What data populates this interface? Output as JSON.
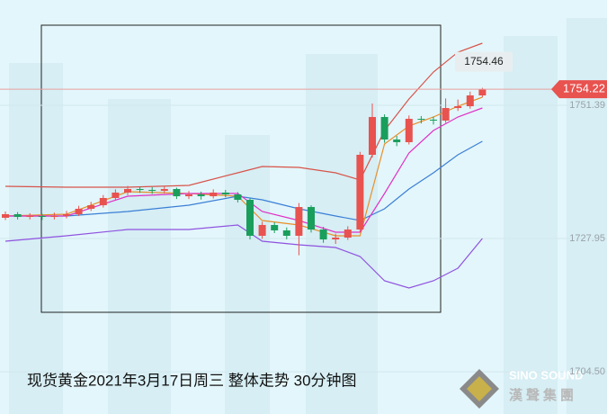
{
  "chart_data": {
    "type": "candlestick",
    "title": "现货黄金2021年3月17日周三 整体走势 30分钟图",
    "brand_en": "SINO SOUND",
    "brand_cn": "漢聲集團",
    "up_color": "#e8524f",
    "down_color": "#1a9e5c",
    "ylim": [
      1697.07,
      1769.92
    ],
    "yticks": [
      1751.39,
      1727.95,
      {
        "value": 1704.5,
        "label": "1704.50"
      }
    ],
    "open": [
      1731.6,
      1732.23,
      1731.75,
      1731.91,
      1731.75,
      1731.91,
      1732.23,
      1733.18,
      1733.81,
      1735.08,
      1736.03,
      1736.66,
      1736.5,
      1736.34,
      1736.66,
      1735.39,
      1735.71,
      1735.39,
      1736.03,
      1735.71,
      1734.76,
      1728.43,
      1730.33,
      1729.38,
      1728.43,
      1733.49,
      1729.53,
      1727.79,
      1728.11,
      1729.53,
      1742.68,
      1749.33,
      1745.37,
      1744.9,
      1749.01,
      1748.86,
      1748.7,
      1750.91,
      1751.23,
      1753.13
    ],
    "high": [
      1732.7,
      1732.6,
      1732.4,
      1732.3,
      1732.5,
      1732.8,
      1733.7,
      1734.4,
      1735.6,
      1736.6,
      1737.2,
      1737.1,
      1737.0,
      1737.2,
      1736.9,
      1736.3,
      1736.2,
      1736.6,
      1736.5,
      1736.1,
      1735.0,
      1730.9,
      1730.8,
      1729.9,
      1734.2,
      1733.8,
      1730.0,
      1728.8,
      1730.1,
      1743.2,
      1751.7,
      1749.8,
      1746.0,
      1749.6,
      1749.5,
      1749.4,
      1752.6,
      1752.4,
      1753.8,
      1754.46
    ],
    "low": [
      1731.2,
      1731.3,
      1731.3,
      1731.2,
      1731.3,
      1731.5,
      1731.9,
      1732.8,
      1733.4,
      1734.7,
      1735.6,
      1736.0,
      1735.8,
      1735.9,
      1734.9,
      1734.9,
      1734.8,
      1735.0,
      1735.2,
      1734.3,
      1727.8,
      1727.9,
      1728.9,
      1727.8,
      1725.0,
      1729.0,
      1727.2,
      1727.0,
      1727.7,
      1729.0,
      1742.2,
      1744.8,
      1744.2,
      1744.5,
      1748.2,
      1748.0,
      1748.3,
      1750.4,
      1750.8,
      1752.8
    ],
    "close": [
      1732.23,
      1731.75,
      1731.91,
      1731.75,
      1731.91,
      1732.23,
      1733.18,
      1733.81,
      1735.08,
      1736.03,
      1736.66,
      1736.5,
      1736.34,
      1736.66,
      1735.39,
      1735.71,
      1735.39,
      1736.03,
      1735.71,
      1734.76,
      1728.43,
      1730.33,
      1729.38,
      1728.43,
      1733.49,
      1729.53,
      1727.79,
      1728.11,
      1729.53,
      1742.68,
      1749.33,
      1745.37,
      1744.9,
      1749.01,
      1748.86,
      1748.7,
      1750.91,
      1751.23,
      1753.13,
      1754.22
    ],
    "lines": [
      {
        "color": "#d9534a",
        "x": [
          0,
          5,
          10,
          15,
          19,
          21,
          24,
          27,
          29,
          31,
          33,
          35,
          37,
          39
        ],
        "values": [
          1737.14,
          1736.98,
          1736.98,
          1737.29,
          1739.51,
          1740.62,
          1740.46,
          1739.51,
          1738.24,
          1746.96,
          1752.5,
          1757.25,
          1760.73,
          1762.32
        ]
      },
      {
        "color": "#3b7fd6",
        "x": [
          0,
          5,
          10,
          15,
          19,
          21,
          24,
          27,
          29,
          31,
          33,
          35,
          37,
          39
        ],
        "values": [
          1731.91,
          1731.91,
          1732.7,
          1733.81,
          1735.39,
          1734.76,
          1733.18,
          1731.91,
          1731.12,
          1733.18,
          1736.66,
          1739.51,
          1742.68,
          1745.05
        ]
      },
      {
        "color": "#9052e0",
        "x": [
          0,
          5,
          10,
          15,
          19,
          21,
          24,
          27,
          29,
          31,
          33,
          35,
          37,
          39
        ],
        "values": [
          1727.47,
          1728.43,
          1729.53,
          1729.53,
          1730.33,
          1727.47,
          1726.84,
          1726.37,
          1724.78,
          1720.51,
          1719.24,
          1720.51,
          1722.72,
          1727.95
        ]
      },
      {
        "color": "#e8902a",
        "x": [
          0,
          5,
          10,
          15,
          19,
          21,
          24,
          27,
          29,
          31,
          33,
          35,
          37,
          39
        ],
        "values": [
          1731.91,
          1732.23,
          1736.19,
          1735.87,
          1735.39,
          1731.12,
          1730.33,
          1728.43,
          1728.43,
          1744.58,
          1747.75,
          1749.33,
          1751.23,
          1752.82
        ]
      },
      {
        "color": "#e032c6",
        "x": [
          0,
          5,
          10,
          15,
          19,
          21,
          24,
          27,
          29,
          31,
          33,
          35,
          37,
          39
        ],
        "values": [
          1731.91,
          1731.91,
          1735.39,
          1735.87,
          1735.87,
          1732.7,
          1731.12,
          1729.06,
          1729.06,
          1735.87,
          1743.0,
          1746.96,
          1749.33,
          1750.91
        ]
      }
    ]
  }
}
